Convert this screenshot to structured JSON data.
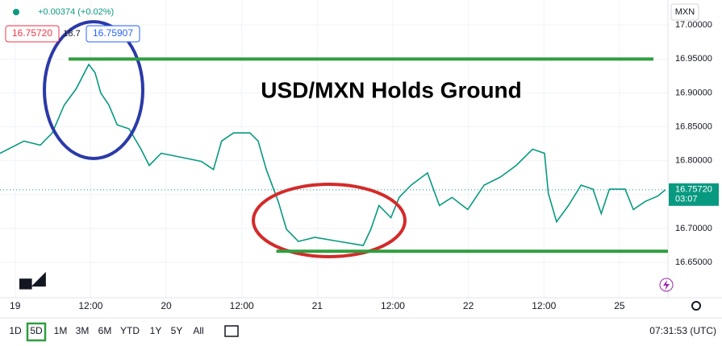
{
  "header": {
    "change": "+0.00374 (+0.02%)",
    "bid": "16.75720",
    "spread": "18.7",
    "ask": "16.75907",
    "currency": "MXN"
  },
  "chart_data": {
    "type": "line",
    "title": "USD/MXN Holds Ground",
    "color": "#089981",
    "x": [
      -2.4,
      1.4,
      4.0,
      5.9,
      7.8,
      9.7,
      11.7,
      12.7,
      13.6,
      14.9,
      16.2,
      18.1,
      20.0,
      21.3,
      23.2,
      26.4,
      29.6,
      31.5,
      32.8,
      34.7,
      37.3,
      38.6,
      39.9,
      41.8,
      43.1,
      45.0,
      47.6,
      51.4,
      55.3,
      56.5,
      57.8,
      59.7,
      61.0,
      62.9,
      65.5,
      67.4,
      69.4,
      71.9,
      74.5,
      77.1,
      79.6,
      82.2,
      84.1,
      84.7,
      86.0,
      87.9,
      89.9,
      91.8,
      93.1,
      94.4,
      96.9,
      98.2,
      100.1,
      102.1,
      103.3
    ],
    "values": [
      16.811,
      16.829,
      16.823,
      16.841,
      16.882,
      16.906,
      16.942,
      16.93,
      16.9,
      16.882,
      16.853,
      16.847,
      16.817,
      16.793,
      16.811,
      16.805,
      16.799,
      16.787,
      16.829,
      16.841,
      16.841,
      16.829,
      16.787,
      16.74,
      16.699,
      16.681,
      16.687,
      16.681,
      16.675,
      16.699,
      16.734,
      16.716,
      16.746,
      16.764,
      16.782,
      16.734,
      16.746,
      16.728,
      16.764,
      16.776,
      16.793,
      16.817,
      16.811,
      16.752,
      16.71,
      16.734,
      16.764,
      16.758,
      16.722,
      16.758,
      16.758,
      16.728,
      16.74,
      16.748,
      16.7572
    ],
    "xlim": [
      -2.4,
      103.7
    ],
    "xticks": [
      {
        "value": 0,
        "label": "19"
      },
      {
        "value": 12,
        "label": "12:00"
      },
      {
        "value": 24,
        "label": "20"
      },
      {
        "value": 36,
        "label": "12:00"
      },
      {
        "value": 48,
        "label": "21"
      },
      {
        "value": 60,
        "label": "12:00"
      },
      {
        "value": 72,
        "label": "22"
      },
      {
        "value": 84,
        "label": "12:00"
      },
      {
        "value": 96,
        "label": "25"
      }
    ],
    "ylim": [
      16.598,
      17.037
    ],
    "yticks": [
      {
        "value": 17.0,
        "label": "17.00000"
      },
      {
        "value": 16.95,
        "label": "16.95000"
      },
      {
        "value": 16.9,
        "label": "16.90000"
      },
      {
        "value": 16.85,
        "label": "16.85000"
      },
      {
        "value": 16.8,
        "label": "16.80000"
      },
      {
        "value": 16.75,
        "label": "16.75000"
      },
      {
        "value": 16.7,
        "label": "16.70000"
      },
      {
        "value": 16.65,
        "label": "16.65000"
      }
    ],
    "grid": true,
    "last_price": {
      "value": 16.7572,
      "label": "16.75720"
    },
    "countdown": "03:07",
    "levels": [
      {
        "value": 16.95,
        "xlim": [
          8.5,
          101.4
        ],
        "color": "#2f9e3f"
      },
      {
        "value": 16.6665,
        "xlim": [
          41.5,
          103.7
        ],
        "color": "#2f9e3f"
      }
    ]
  },
  "toolbar": {
    "ranges": [
      "1D",
      "5D",
      "1M",
      "3M",
      "6M",
      "YTD",
      "1Y",
      "5Y",
      "All"
    ],
    "active_range": "5D",
    "clock": "07:31:53 (UTC)"
  }
}
